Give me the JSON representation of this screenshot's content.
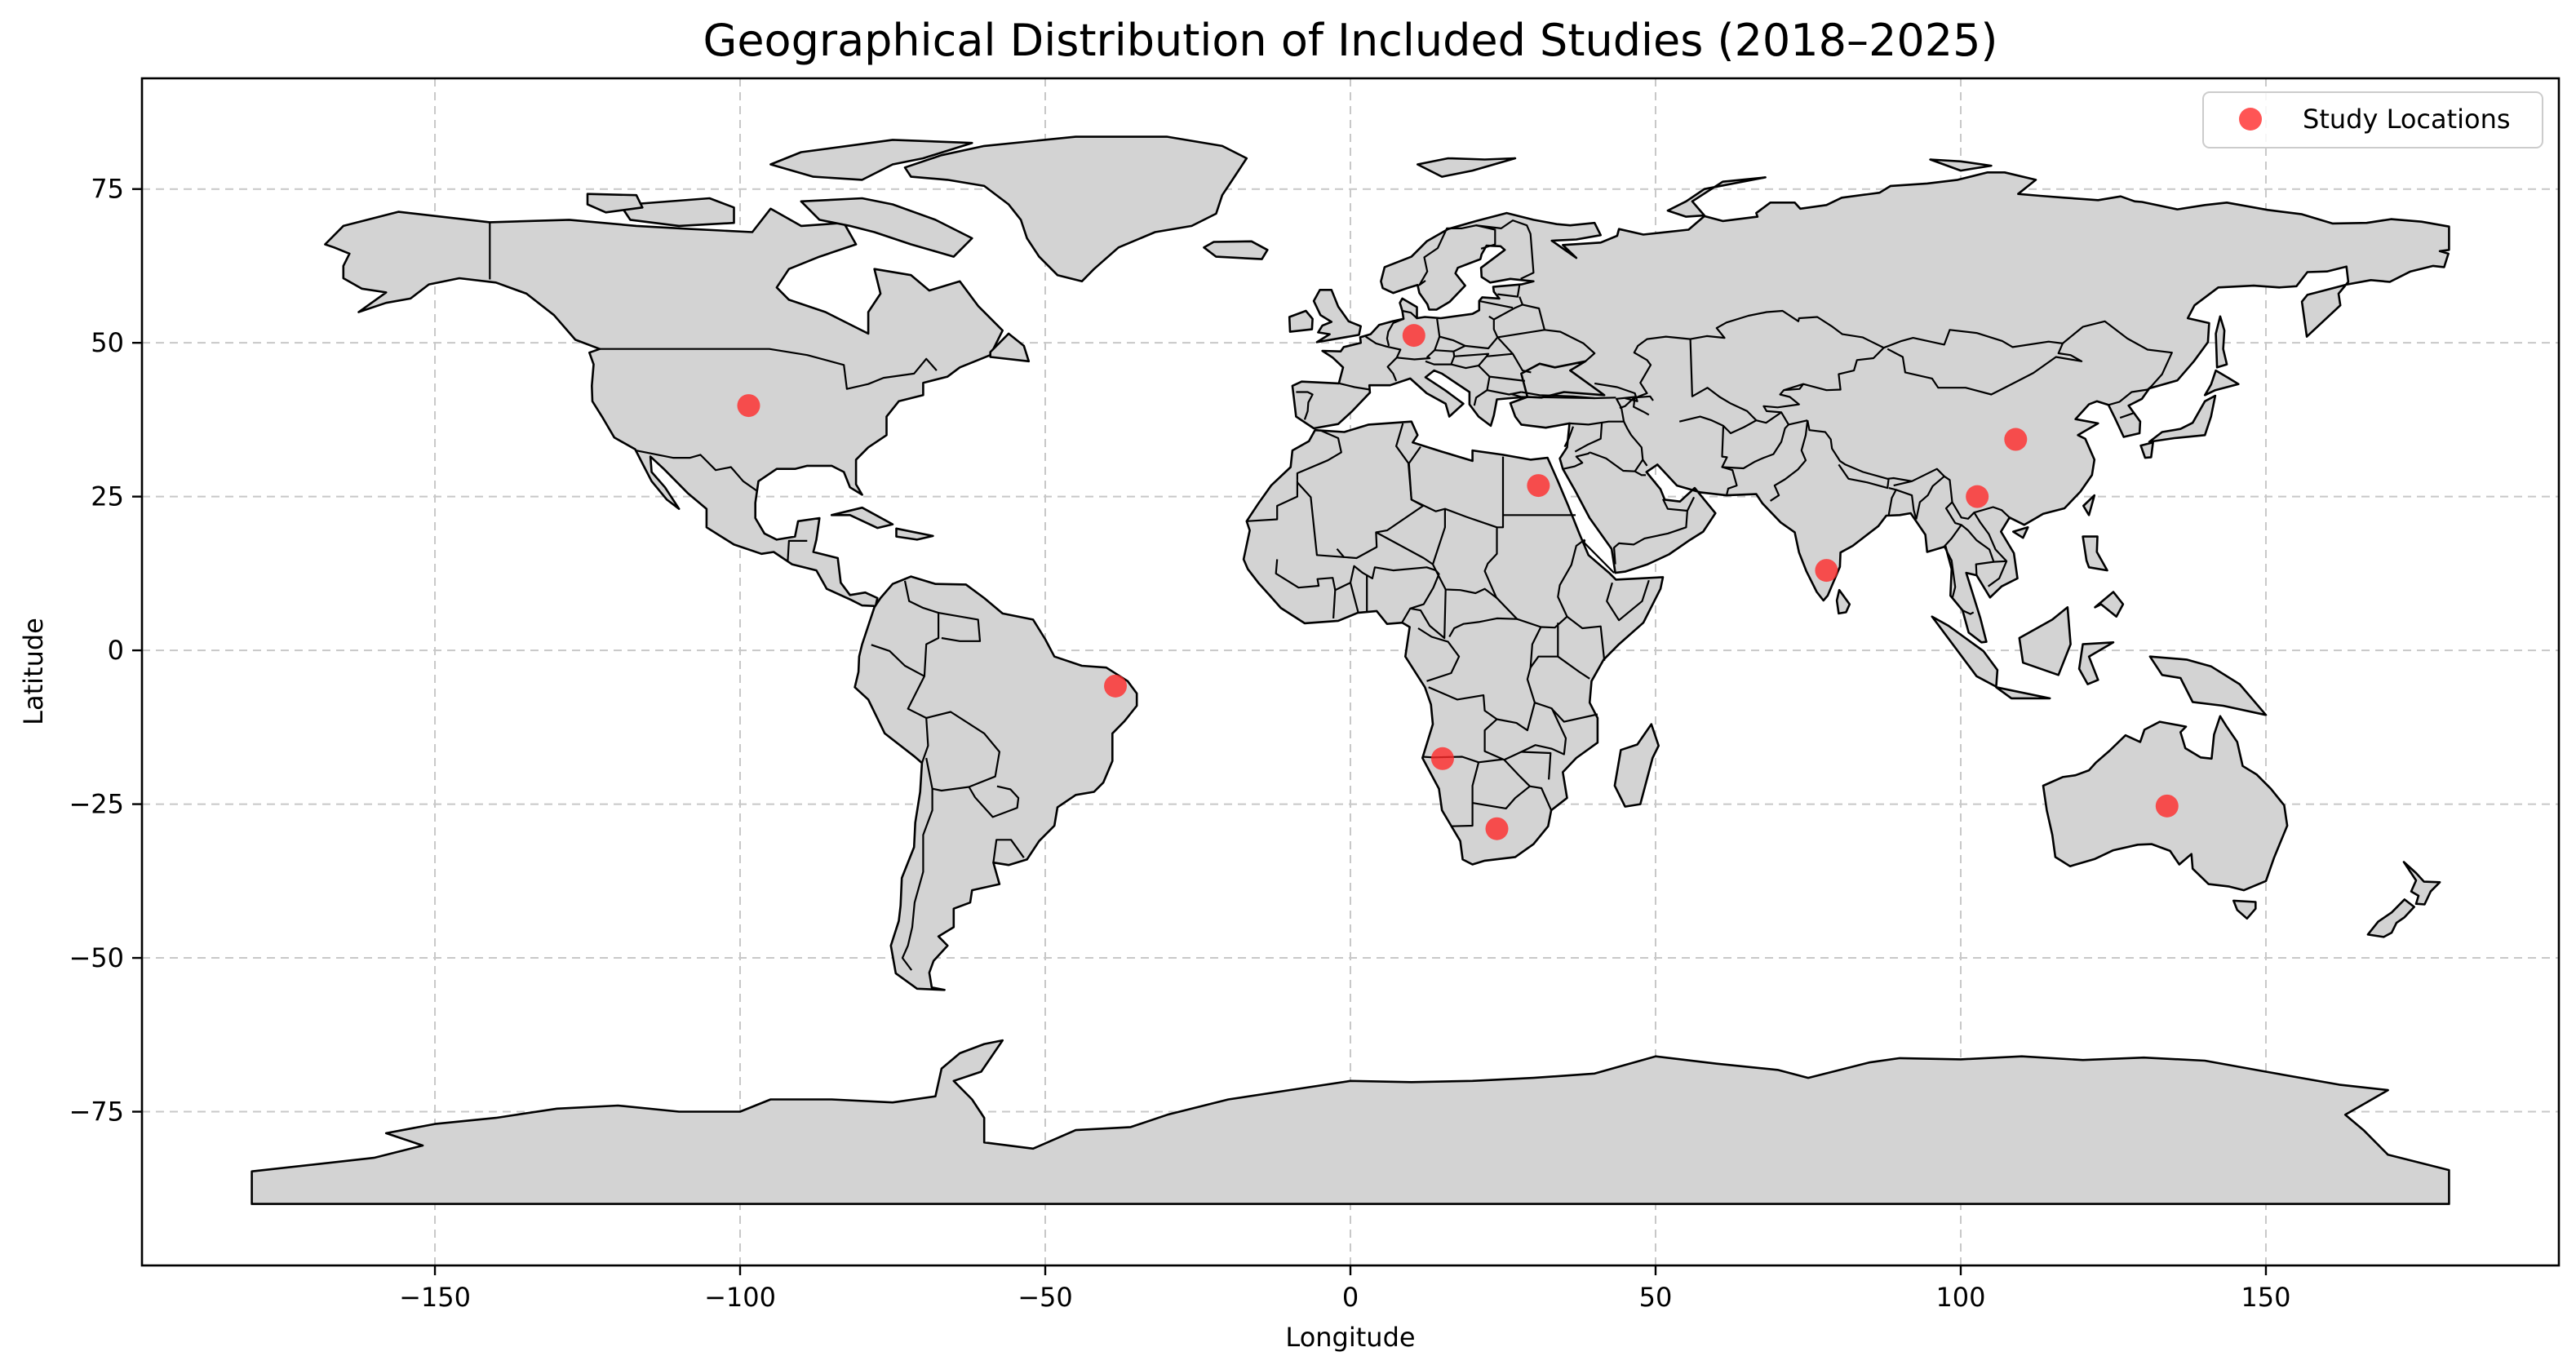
{
  "chart_data": {
    "type": "scatter",
    "title": "Geographical Distribution of Included Studies (2018–2025)",
    "xlabel": "Longitude",
    "ylabel": "Latitude",
    "xlim": [
      -198,
      198
    ],
    "ylim": [
      -100,
      93
    ],
    "xticks": [
      -150,
      -100,
      -50,
      0,
      50,
      100,
      150
    ],
    "yticks": [
      75,
      50,
      25,
      0,
      -25,
      -50,
      -75
    ],
    "xtick_labels": [
      "−150",
      "−100",
      "−50",
      "0",
      "50",
      "100",
      "150"
    ],
    "ytick_labels": [
      "75",
      "50",
      "25",
      "0",
      "−25",
      "−50",
      "−75"
    ],
    "grid": true,
    "legend_position": "top-right",
    "colors": {
      "points": "#ff2a2a",
      "land": "#d3d3d3",
      "grid": "#c8c8c8"
    },
    "basemap": "world",
    "series": [
      {
        "name": "Study Locations",
        "x": [
          -98.6,
          10.4,
          30.8,
          109.0,
          102.7,
          78.0,
          -38.5,
          15.1,
          24.0,
          133.8
        ],
        "y": [
          39.8,
          51.2,
          26.8,
          34.3,
          25.0,
          13.0,
          -5.8,
          -17.6,
          -29.0,
          -25.3
        ]
      }
    ]
  }
}
